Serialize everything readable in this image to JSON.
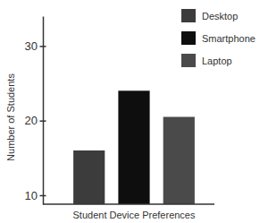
{
  "chart_data": {
    "type": "bar",
    "categories": [
      "Desktop",
      "Smartphone",
      "Laptop"
    ],
    "values": [
      16,
      24,
      20.5
    ],
    "colors": [
      "#3c3c3c",
      "#0e0e0e",
      "#4a4a4a"
    ],
    "xlabel": "Student Device Preferences",
    "ylabel": "Number of Students",
    "ylim": [
      8.8,
      34
    ],
    "yticks": [
      10,
      20,
      30
    ],
    "legend": "upper right",
    "tick_labels": "y"
  }
}
